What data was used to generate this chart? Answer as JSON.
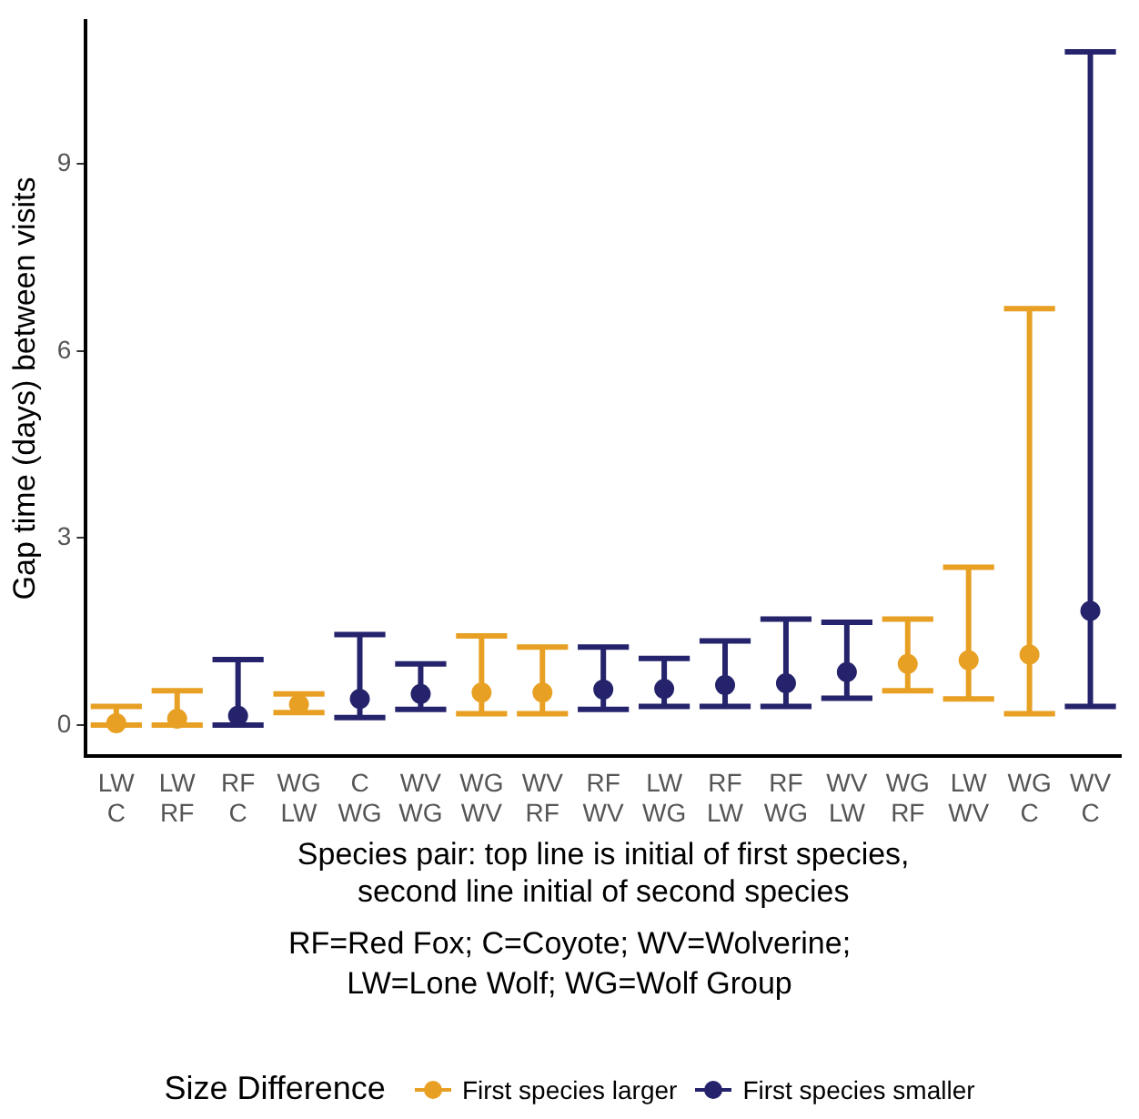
{
  "chart_data": {
    "type": "scatter",
    "xlabel": "Species pair: top line is initial of first species,\nsecond line initial of second species",
    "ylabel": "Gap time (days) between visits",
    "legend_title": "Size Difference",
    "annotations": [
      "RF=Red Fox; C=Coyote; WV=Wolverine;\nLW=Lone Wolf; WG=Wolf Group"
    ],
    "categories": [
      "LW\nC",
      "LW\nRF",
      "RF\nC",
      "WG\nLW",
      "C\nWG",
      "WV\nWG",
      "WG\nWV",
      "WV\nRF",
      "RF\nWV",
      "LW\nWG",
      "RF\nLW",
      "RF\nWG",
      "WV\nLW",
      "WG\nRF",
      "LW\nWV",
      "WG\nC",
      "WV\nC"
    ],
    "ylim": [
      -0.5,
      11.3
    ],
    "yticks": [
      0,
      3,
      6,
      9
    ],
    "grid": false,
    "legend": "bottom",
    "marker": "circle",
    "series": [
      {
        "name": "First species larger",
        "color": "#e8a024",
        "values": [
          0.03,
          0.1,
          null,
          0.33,
          null,
          null,
          0.52,
          0.52,
          null,
          null,
          null,
          null,
          null,
          0.98,
          1.04,
          1.13,
          null
        ],
        "errors": [
          [
            0,
            0.3
          ],
          [
            0,
            0.55
          ],
          null,
          [
            0.2,
            0.5
          ],
          null,
          null,
          [
            0.18,
            1.43
          ],
          [
            0.18,
            1.25
          ],
          null,
          null,
          null,
          null,
          null,
          [
            0.55,
            1.7
          ],
          [
            0.42,
            2.53
          ],
          [
            0.18,
            6.68
          ],
          null
        ]
      },
      {
        "name": "First species smaller",
        "color": "#25236b",
        "values": [
          null,
          null,
          0.15,
          null,
          0.42,
          0.5,
          null,
          null,
          0.57,
          0.58,
          0.64,
          0.67,
          0.85,
          null,
          null,
          null,
          1.83
        ],
        "errors": [
          null,
          null,
          [
            0,
            1.05
          ],
          null,
          [
            0.12,
            1.45
          ],
          [
            0.25,
            0.98
          ],
          null,
          null,
          [
            0.25,
            1.25
          ],
          [
            0.3,
            1.07
          ],
          [
            0.3,
            1.35
          ],
          [
            0.3,
            1.7
          ],
          [
            0.43,
            1.65
          ],
          null,
          null,
          null,
          [
            0.3,
            10.8
          ]
        ]
      }
    ]
  }
}
